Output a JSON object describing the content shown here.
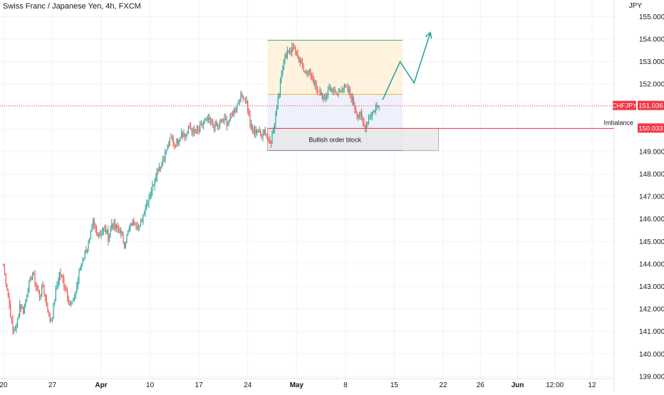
{
  "header": {
    "title": "Swiss Franc / Japanese Yen, 4h, FXCM",
    "price_unit": "JPY"
  },
  "colors": {
    "up": "#26a69a",
    "down": "#ef5350",
    "price_line": "#f23645",
    "grid": "#f0f3fa",
    "axis_text": "#131722",
    "target_fill": "#fff3e0",
    "stop_fill": "#eef1fb",
    "order_block_fill": "#e5e5e5",
    "projection": "#26a69a",
    "neutral_line": "#f5b041",
    "stop_line": "#2962ff",
    "target_line": "#4caf50"
  },
  "chart_data": {
    "type": "candlestick",
    "symbol": "CHFJPY",
    "timeframe": "4h",
    "source": "FXCM",
    "y_axis": {
      "position": "right",
      "unit": "JPY",
      "range": [
        138.9,
        155.3
      ],
      "ticks": [
        "139.000",
        "140.000",
        "141.000",
        "142.000",
        "143.000",
        "144.000",
        "145.000",
        "146.000",
        "147.000",
        "148.000",
        "149.000",
        "150.000",
        "151.000",
        "152.000",
        "153.000",
        "154.000",
        "155.000"
      ]
    },
    "x_axis": {
      "ticks": [
        "20",
        "27",
        "Apr",
        "10",
        "17",
        "24",
        "May",
        "8",
        "15",
        "22",
        "26",
        "Jun",
        "12:00",
        "12"
      ],
      "tick_bar_index": [
        0,
        42,
        84,
        126,
        168,
        210,
        252,
        294,
        336,
        378,
        410,
        442,
        474,
        506
      ],
      "bar_range": [
        -3,
        525
      ],
      "bold_ticks": [
        "Apr",
        "May",
        "Jun"
      ]
    },
    "grid": true,
    "price_path": [
      [
        0,
        143.9
      ],
      [
        4,
        142.6
      ],
      [
        8,
        141.0
      ],
      [
        11,
        141.2
      ],
      [
        14,
        142.2
      ],
      [
        17,
        141.9
      ],
      [
        21,
        142.9
      ],
      [
        25,
        143.6
      ],
      [
        28,
        143.0
      ],
      [
        31,
        142.6
      ],
      [
        34,
        143.0
      ],
      [
        37,
        142.2
      ],
      [
        40,
        141.5
      ],
      [
        42,
        141.7
      ],
      [
        45,
        142.8
      ],
      [
        48,
        143.6
      ],
      [
        51,
        143.3
      ],
      [
        54,
        142.8
      ],
      [
        57,
        142.2
      ],
      [
        60,
        142.3
      ],
      [
        63,
        143.0
      ],
      [
        66,
        143.9
      ],
      [
        70,
        144.5
      ],
      [
        74,
        145.0
      ],
      [
        77,
        145.8
      ],
      [
        80,
        145.4
      ],
      [
        84,
        145.4
      ],
      [
        87,
        145.6
      ],
      [
        90,
        145.2
      ],
      [
        93,
        145.8
      ],
      [
        96,
        145.6
      ],
      [
        100,
        145.5
      ],
      [
        104,
        144.9
      ],
      [
        107,
        145.4
      ],
      [
        110,
        145.8
      ],
      [
        113,
        145.9
      ],
      [
        117,
        145.6
      ],
      [
        121,
        146.4
      ],
      [
        125,
        147.0
      ],
      [
        129,
        147.6
      ],
      [
        132,
        148.2
      ],
      [
        135,
        148.4
      ],
      [
        138,
        148.8
      ],
      [
        141,
        149.2
      ],
      [
        144,
        149.6
      ],
      [
        147,
        149.3
      ],
      [
        150,
        149.5
      ],
      [
        153,
        149.9
      ],
      [
        156,
        149.7
      ],
      [
        160,
        150.1
      ],
      [
        164,
        149.8
      ],
      [
        168,
        149.9
      ],
      [
        172,
        150.3
      ],
      [
        176,
        150.4
      ],
      [
        180,
        150.2
      ],
      [
        184,
        150.1
      ],
      [
        188,
        150.4
      ],
      [
        192,
        150.3
      ],
      [
        196,
        150.6
      ],
      [
        200,
        151.0
      ],
      [
        203,
        151.4
      ],
      [
        206,
        151.5
      ],
      [
        209,
        151.2
      ],
      [
        212,
        150.2
      ],
      [
        215,
        149.8
      ],
      [
        218,
        150.0
      ],
      [
        221,
        149.7
      ],
      [
        224,
        150.0
      ],
      [
        227,
        149.6
      ],
      [
        230,
        149.5
      ],
      [
        233,
        150.2
      ],
      [
        235,
        151.1
      ],
      [
        237,
        151.7
      ],
      [
        239,
        152.6
      ],
      [
        241,
        153.0
      ],
      [
        244,
        153.5
      ],
      [
        247,
        153.5
      ],
      [
        250,
        153.7
      ],
      [
        252,
        153.2
      ],
      [
        255,
        152.9
      ],
      [
        258,
        152.7
      ],
      [
        261,
        152.5
      ],
      [
        264,
        152.5
      ],
      [
        267,
        152.1
      ],
      [
        270,
        151.6
      ],
      [
        273,
        151.6
      ],
      [
        276,
        151.2
      ],
      [
        279,
        151.8
      ],
      [
        282,
        151.8
      ],
      [
        285,
        151.6
      ],
      [
        288,
        151.6
      ],
      [
        291,
        151.9
      ],
      [
        294,
        151.8
      ],
      [
        298,
        151.6
      ],
      [
        301,
        151.1
      ],
      [
        304,
        150.7
      ],
      [
        307,
        150.6
      ],
      [
        310,
        150.1
      ],
      [
        312,
        150.3
      ],
      [
        315,
        150.6
      ],
      [
        318,
        150.8
      ],
      [
        321,
        151.0
      ],
      [
        323,
        151.0
      ]
    ],
    "current_price": {
      "label": "CHFJPY",
      "value": "151.036",
      "price": 151.036
    },
    "horizontal_line": {
      "label": "Imbalance",
      "value": "150.033",
      "price": 150.033
    },
    "position_tool": {
      "start_bar": 227,
      "end_bar": 343,
      "entry": 151.55,
      "target": 153.95,
      "stop": 149.05
    },
    "order_block": {
      "label": "Bullish order block",
      "start_bar": 227,
      "end_bar": 374,
      "top": 150.033,
      "bottom": 149.05
    },
    "projection_path": [
      [
        326,
        151.3
      ],
      [
        341,
        153.0
      ],
      [
        353,
        152.05
      ],
      [
        367,
        154.3
      ]
    ]
  }
}
